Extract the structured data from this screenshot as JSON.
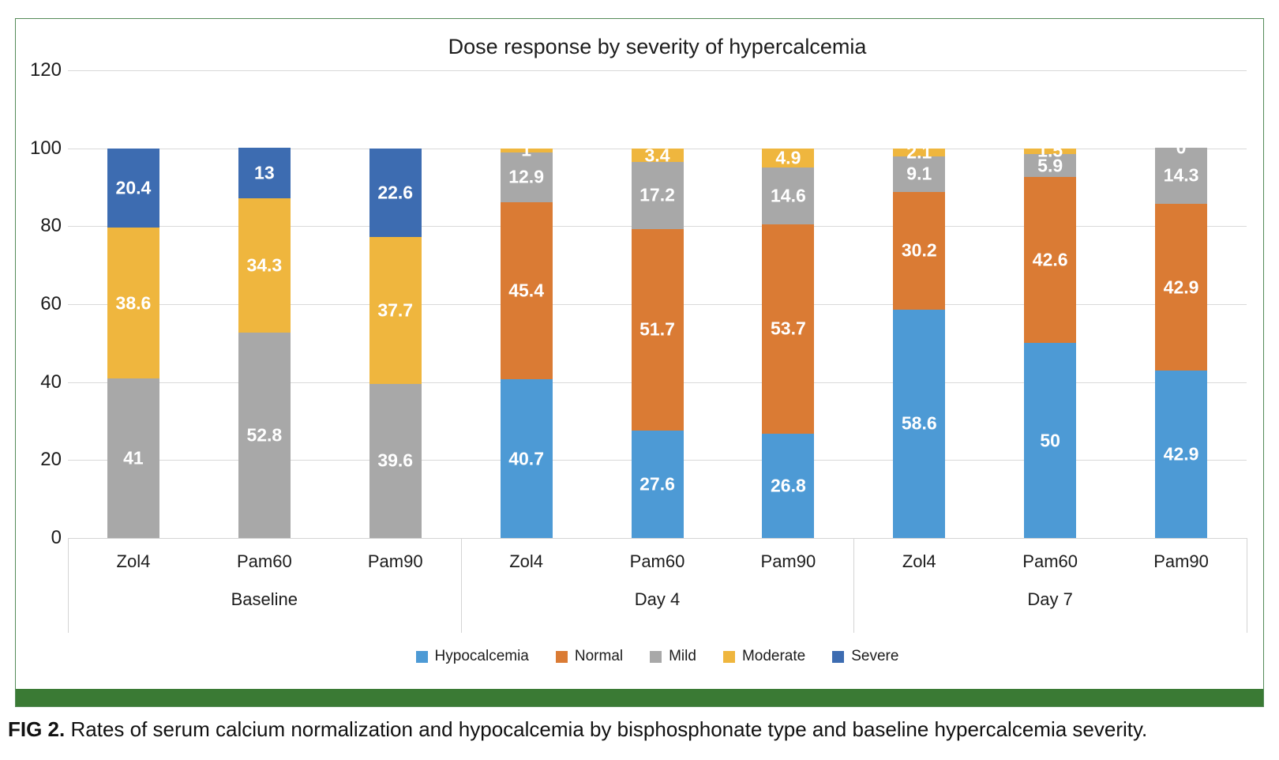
{
  "figure": {
    "caption_label": "FIG 2.",
    "caption_text": "Rates of serum calcium normalization and hypocalcemia by bisphosphonate type and baseline hypercalcemia severity."
  },
  "colors": {
    "border_green": "#558b59",
    "bottom_bar_green": "#3a7a34",
    "gridline": "#d9d9d9",
    "hypocalcemia_blue": "#4d9ad5",
    "normal_orange": "#da7b34",
    "mild_gray": "#a8a8a8",
    "moderate_yellow": "#efb63e",
    "severe_blue": "#3d6cb1"
  },
  "chart_data": {
    "type": "bar",
    "stacked": true,
    "title": "Dose response by severity of hypercalcemia",
    "xlabel": "",
    "ylabel": "",
    "ylim": [
      0,
      120
    ],
    "yticks": [
      0,
      20,
      40,
      60,
      80,
      100,
      120
    ],
    "grid": true,
    "legend_position": "bottom",
    "groups": [
      "Baseline",
      "Day 4",
      "Day 7"
    ],
    "categories": [
      "Zol4",
      "Pam60",
      "Pam90",
      "Zol4",
      "Pam60",
      "Pam90",
      "Zol4",
      "Pam60",
      "Pam90"
    ],
    "series": [
      {
        "name": "Hypocalcemia",
        "color": "#4d9ad5",
        "values": [
          0,
          0,
          0,
          40.7,
          27.6,
          26.8,
          58.6,
          50,
          42.9
        ],
        "labels": [
          "0",
          "0",
          "0",
          "40.7",
          "27.6",
          "26.8",
          "58.6",
          "50",
          "42.9"
        ]
      },
      {
        "name": "Normal",
        "color": "#da7b34",
        "values": [
          0,
          0,
          0,
          45.4,
          51.7,
          53.7,
          30.2,
          42.6,
          42.9
        ],
        "labels": [
          "",
          "",
          "",
          "45.4",
          "51.7",
          "53.7",
          "30.2",
          "42.6",
          "42.9"
        ]
      },
      {
        "name": "Mild",
        "color": "#a8a8a8",
        "values": [
          41,
          52.8,
          39.6,
          12.9,
          17.2,
          14.6,
          9.1,
          5.9,
          14.3
        ],
        "labels": [
          "41",
          "52.8",
          "39.6",
          "12.9",
          "17.2",
          "14.6",
          "9.1",
          "5.9",
          "14.3"
        ]
      },
      {
        "name": "Moderate",
        "color": "#efb63e",
        "values": [
          38.6,
          34.3,
          37.7,
          1,
          3.4,
          4.9,
          2.1,
          1.5,
          0
        ],
        "labels": [
          "38.6",
          "34.3",
          "37.7",
          "1",
          "3.4",
          "4.9",
          "2.1",
          "1.5",
          "0"
        ]
      },
      {
        "name": "Severe",
        "color": "#3d6cb1",
        "values": [
          20.4,
          13,
          22.6,
          0,
          0,
          0,
          0,
          0,
          0
        ],
        "labels": [
          "20.4",
          "13",
          "22.6",
          "",
          "",
          "",
          "",
          "",
          ""
        ]
      }
    ],
    "legend": [
      "Hypocalcemia",
      "Normal",
      "Mild",
      "Moderate",
      "Severe"
    ]
  }
}
